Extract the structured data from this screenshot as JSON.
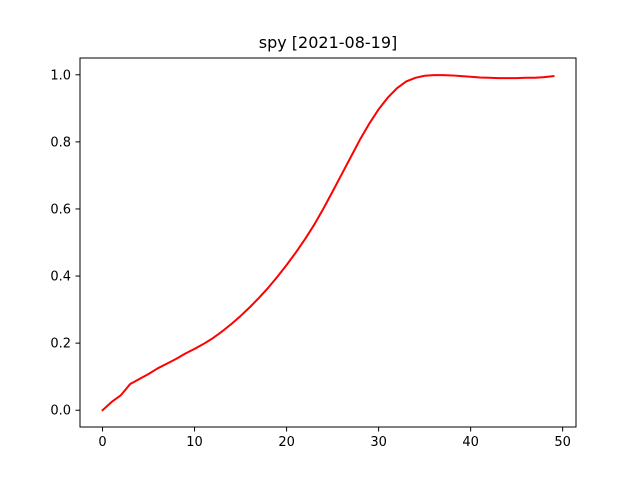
{
  "chart_data": {
    "type": "line",
    "title": "spy [2021-08-19]",
    "xlabel": "",
    "ylabel": "",
    "xlim": [
      -2.45,
      51.45
    ],
    "ylim": [
      -0.05,
      1.05
    ],
    "x_ticks": [
      0,
      10,
      20,
      30,
      40,
      50
    ],
    "y_ticks": [
      0.0,
      0.2,
      0.4,
      0.6,
      0.8,
      1.0
    ],
    "x_tick_labels": [
      "0",
      "10",
      "20",
      "30",
      "40",
      "50"
    ],
    "y_tick_labels": [
      "0.0",
      "0.2",
      "0.4",
      "0.6",
      "0.8",
      "1.0"
    ],
    "grid": false,
    "legend": "none",
    "series": [
      {
        "color": "#ff0000",
        "x": [
          0,
          1,
          2,
          3,
          4,
          5,
          6,
          7,
          8,
          9,
          10,
          11,
          12,
          13,
          14,
          15,
          16,
          17,
          18,
          19,
          20,
          21,
          22,
          23,
          24,
          25,
          26,
          27,
          28,
          29,
          30,
          31,
          32,
          33,
          34,
          35,
          36,
          37,
          38,
          39,
          40,
          41,
          42,
          43,
          44,
          45,
          46,
          47,
          48,
          49
        ],
        "y": [
          0.0,
          0.025,
          0.045,
          0.078,
          0.093,
          0.108,
          0.125,
          0.139,
          0.153,
          0.169,
          0.183,
          0.198,
          0.215,
          0.235,
          0.257,
          0.281,
          0.307,
          0.335,
          0.365,
          0.398,
          0.433,
          0.47,
          0.51,
          0.553,
          0.601,
          0.652,
          0.704,
          0.756,
          0.808,
          0.855,
          0.897,
          0.932,
          0.96,
          0.98,
          0.991,
          0.997,
          0.999,
          0.999,
          0.998,
          0.996,
          0.994,
          0.992,
          0.991,
          0.99,
          0.99,
          0.99,
          0.991,
          0.991,
          0.993,
          0.996
        ]
      }
    ]
  }
}
